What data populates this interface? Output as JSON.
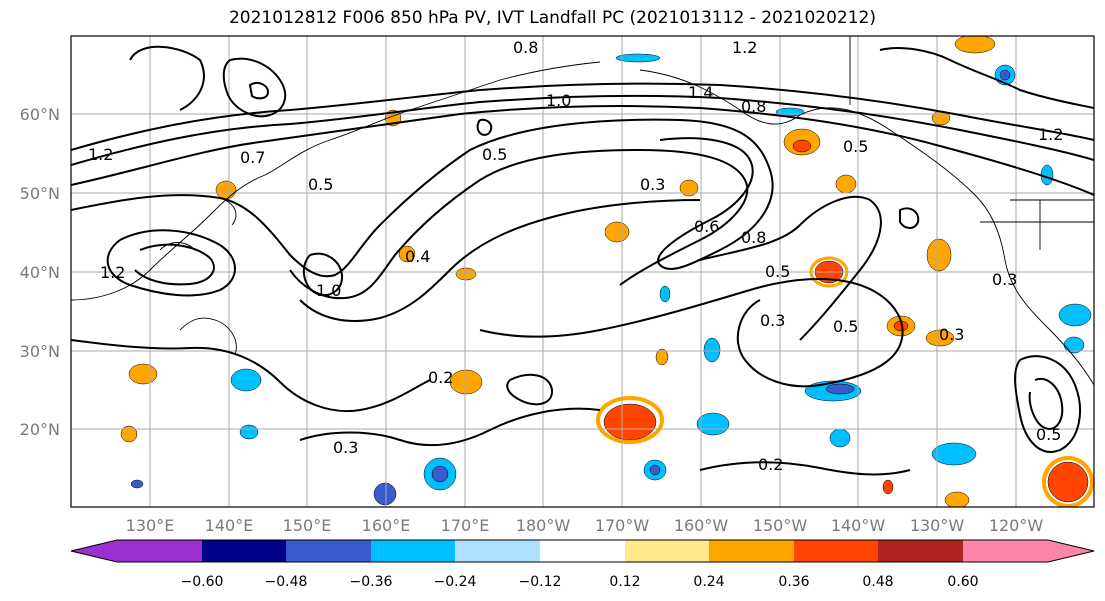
{
  "title": "2021012812 F006 850 hPa PV, IVT Landfall PC (2021013112 - 2021020212)",
  "lat_labels": [
    "60°N",
    "50°N",
    "40°N",
    "30°N",
    "20°N"
  ],
  "lon_labels": [
    "130°E",
    "140°E",
    "150°E",
    "160°E",
    "170°E",
    "180°W",
    "170°W",
    "160°W",
    "150°W",
    "140°W",
    "130°W",
    "120°W"
  ],
  "contour_labels": [
    "0.8",
    "1.2",
    "1.0",
    "1.4",
    "0.8",
    "1.2",
    "1.2",
    "0.5",
    "0.7",
    "0.5",
    "0.3",
    "0.5",
    "0.6",
    "0.8",
    "0.5",
    "0.3",
    "0.5",
    "0.2",
    "0.3",
    "0.2",
    "0.5",
    "0.3",
    "1.2",
    "0.4",
    "1.0",
    "0.3"
  ],
  "colorbar": {
    "tick_labels": [
      "−0.60",
      "−0.48",
      "−0.36",
      "−0.24",
      "−0.12",
      "0.12",
      "0.24",
      "0.36",
      "0.48",
      "0.60"
    ],
    "colors": [
      "#9b30d0",
      "#00008b",
      "#3a5bd0",
      "#00bfff",
      "#b0e0ff",
      "#ffffff",
      "#ffe98a",
      "#ffa500",
      "#ff4500",
      "#b22222",
      "#ff85a8"
    ]
  }
}
